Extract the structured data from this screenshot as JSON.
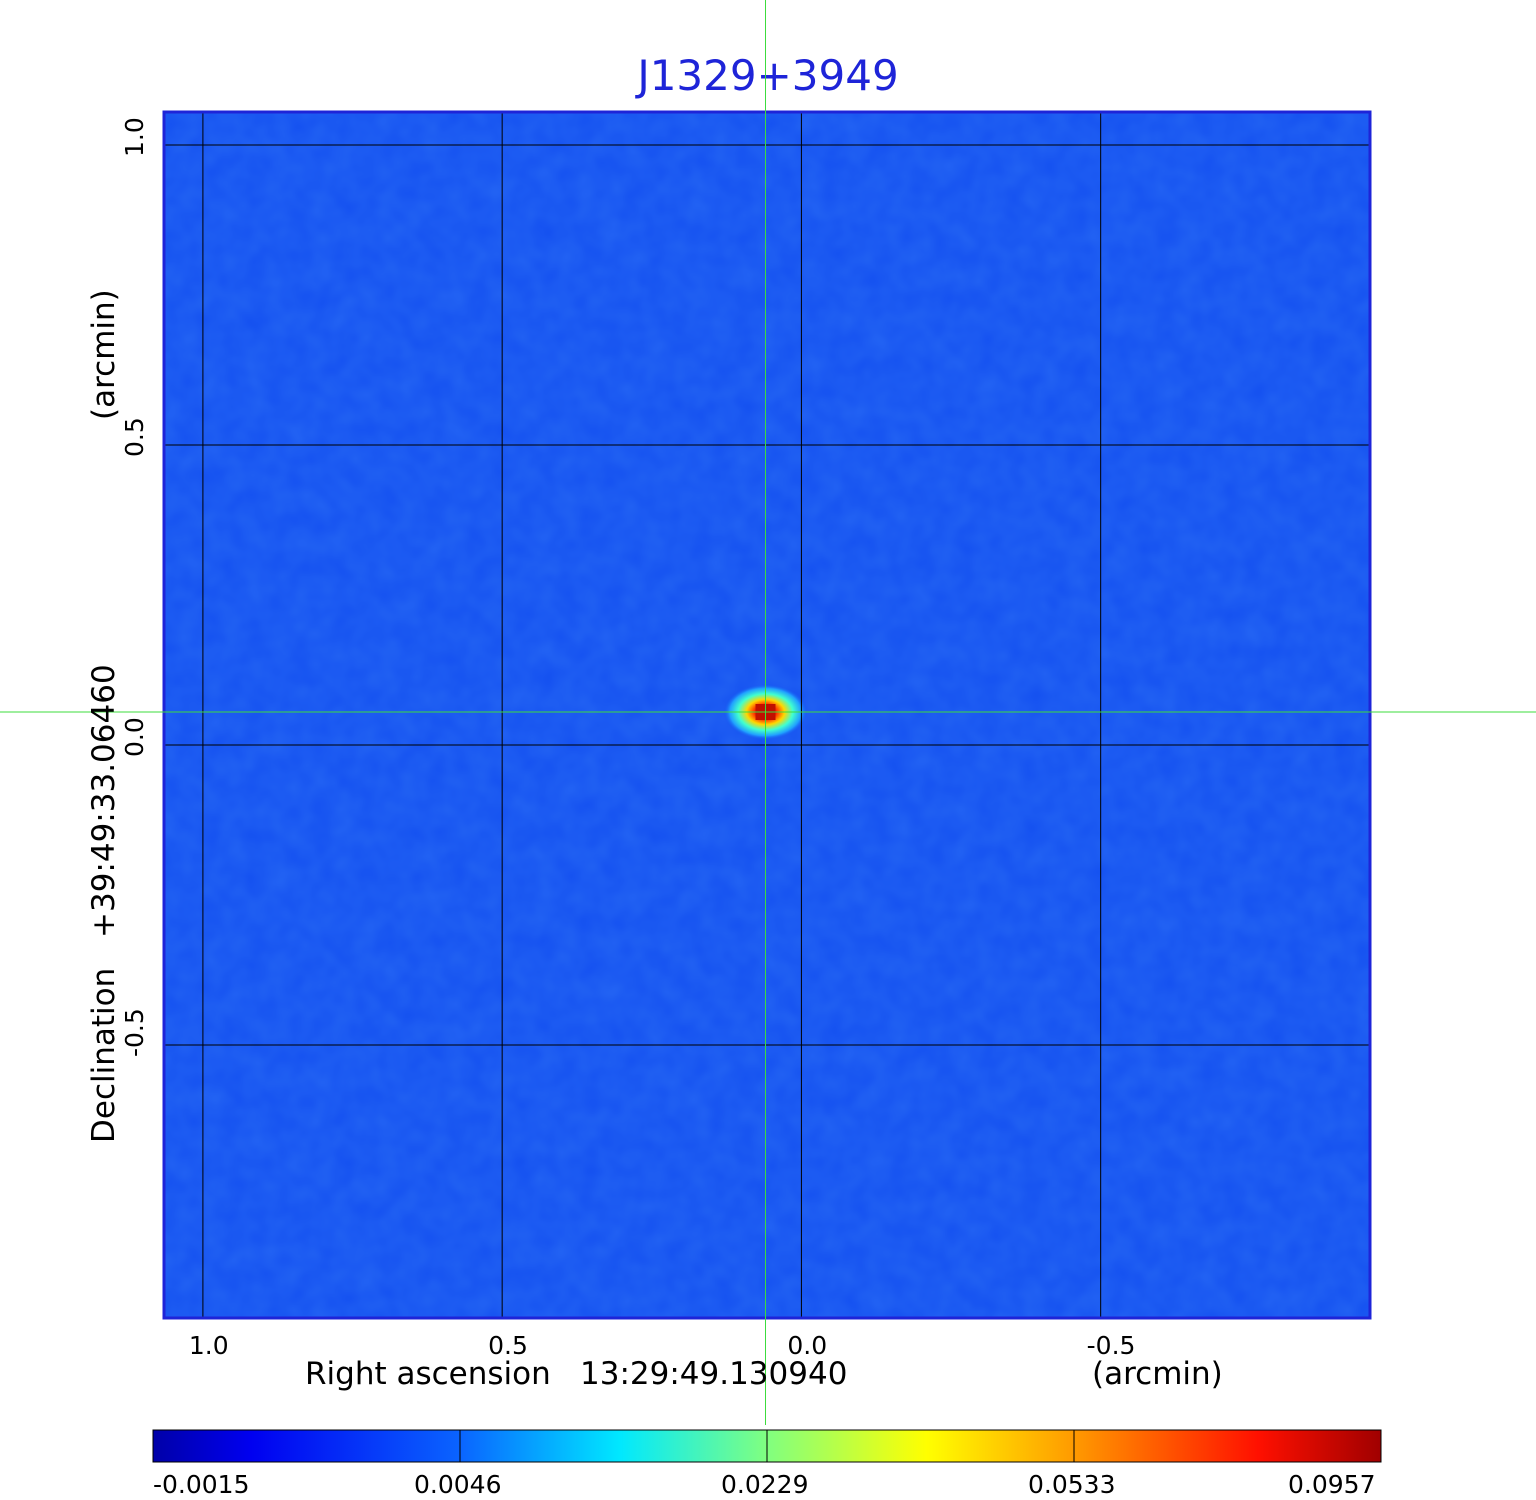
{
  "chart_data": {
    "type": "heatmap",
    "title": "J1329+3949",
    "xlabel": "Right ascension",
    "xlabel_ref": "13:29:49.130940",
    "xlabel_unit": "(arcmin)",
    "ylabel": "Declination",
    "ylabel_ref": "+39:49:33.06460",
    "ylabel_unit": "(arcmin)",
    "xticks": [
      "1.0",
      "0.5",
      "0.0",
      "-0.5"
    ],
    "xtick_values": [
      1.0,
      0.5,
      0.0,
      -0.5
    ],
    "yticks": [
      "1.0",
      "0.5",
      "0.0",
      "-0.5"
    ],
    "ytick_values": [
      1.0,
      0.5,
      0.0,
      -0.5
    ],
    "xlim": [
      1.065,
      -0.95
    ],
    "ylim": [
      -0.955,
      1.055
    ],
    "grid": true,
    "colormap": "jet",
    "background_color": "#1450f0",
    "frame_color": "#1e24d8",
    "crosshair_color": "#3ddc3d",
    "crosshair": {
      "x": 0.06,
      "y": 0.055
    },
    "colorbar": {
      "ticks": [
        "-0.0015",
        "0.0046",
        "0.0229",
        "0.0533",
        "0.0957"
      ],
      "tick_values": [
        -0.0015,
        0.0046,
        0.0229,
        0.0533,
        0.0957
      ],
      "range": [
        -0.0015,
        0.0957
      ]
    },
    "sources": [
      {
        "x": 0.06,
        "y": 0.055,
        "peak": 0.0957
      }
    ]
  }
}
